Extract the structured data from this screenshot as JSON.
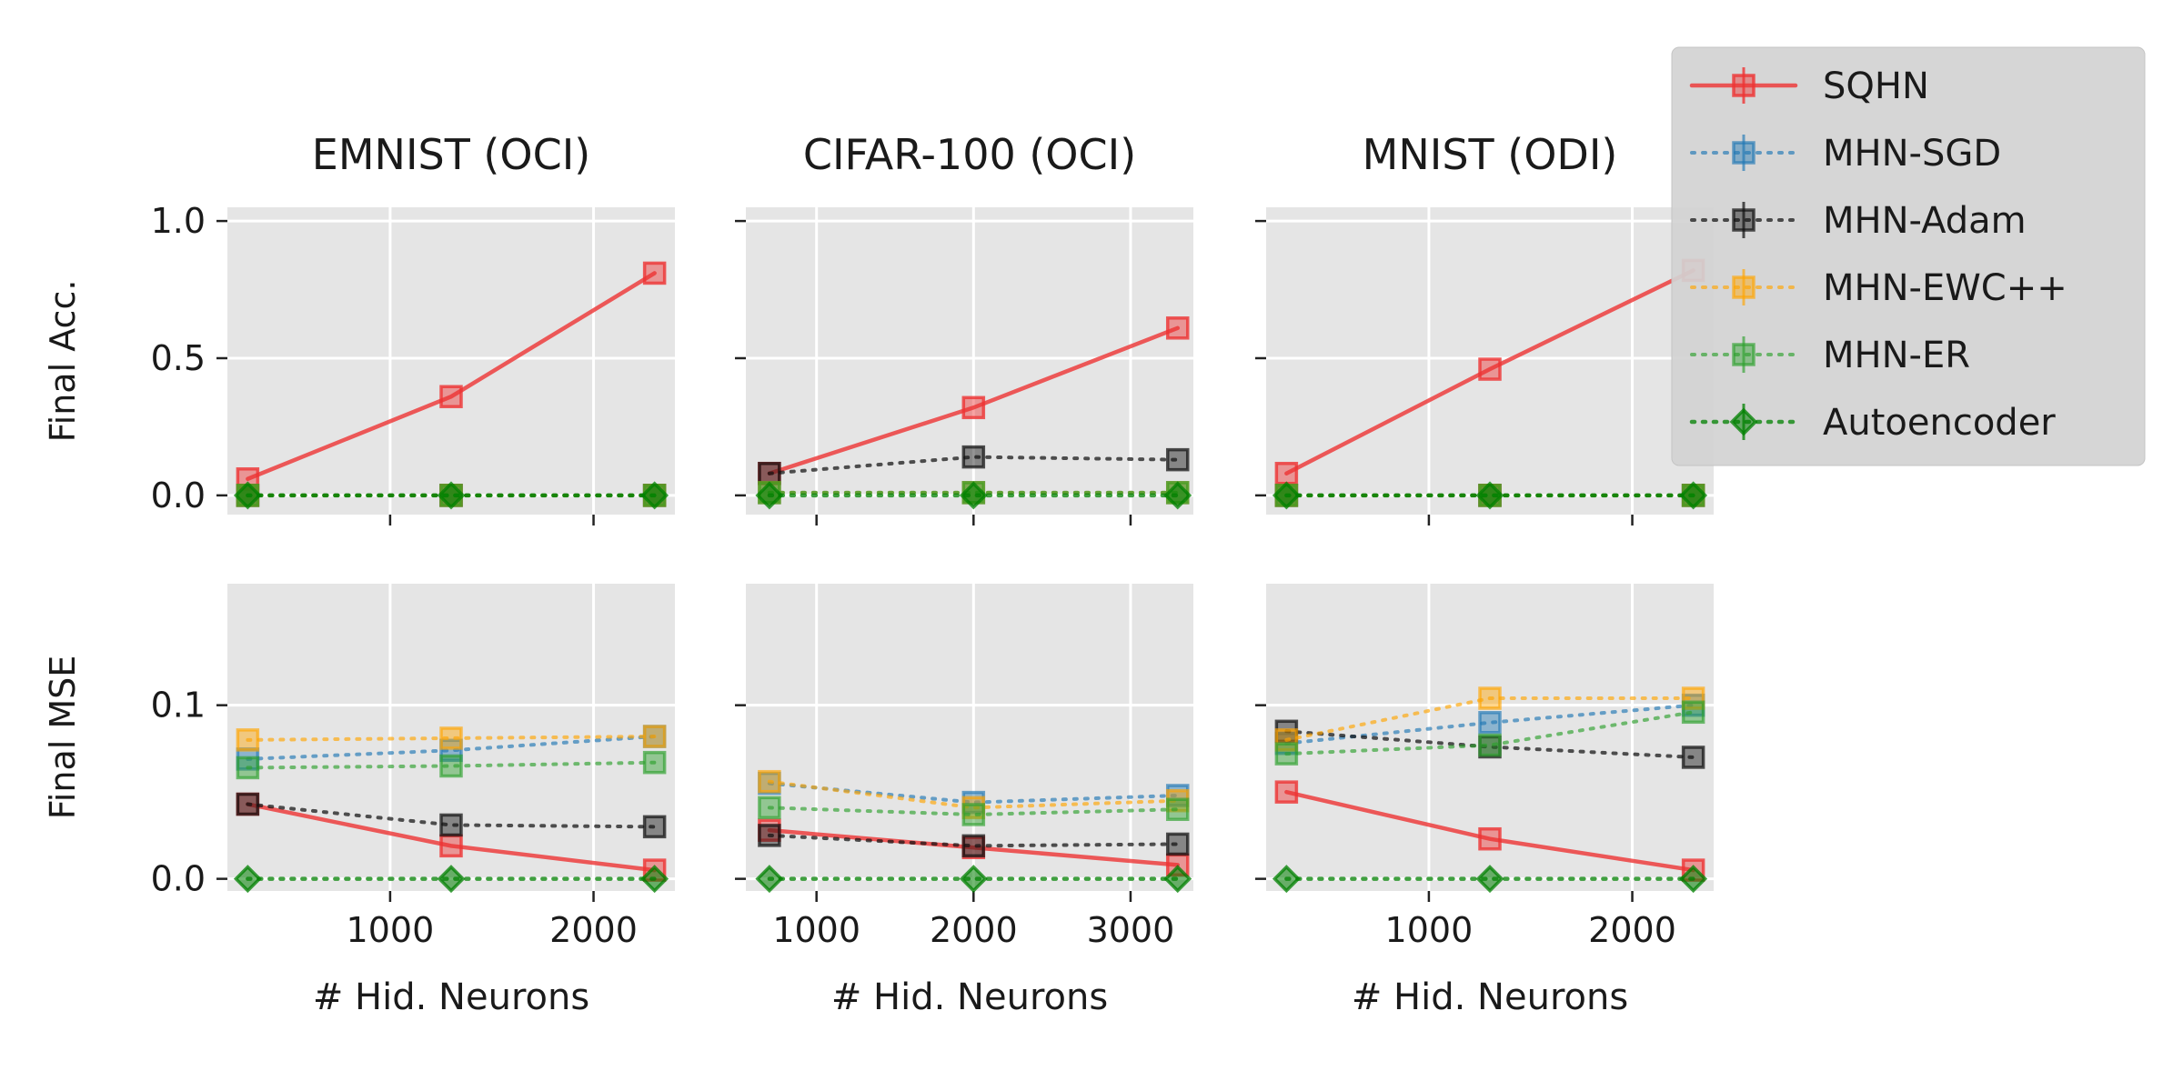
{
  "chart_data": [
    {
      "type": "line",
      "title": "EMNIST (OCI)",
      "ylabel": "Final Acc.",
      "xlabel": "",
      "x": [
        300,
        1300,
        2300
      ],
      "xlim": [
        200,
        2400
      ],
      "ylim": [
        -0.07,
        1.05
      ],
      "xticks": [
        1000,
        2000
      ],
      "xticklabels": [
        "",
        ""
      ],
      "yticks": [
        0.0,
        0.5,
        1.0
      ],
      "yticklabels": [
        "0.0",
        "0.5",
        "1.0"
      ],
      "series": [
        {
          "name": "SQHN",
          "values": [
            0.06,
            0.36,
            0.81
          ]
        },
        {
          "name": "MHN-SGD",
          "values": [
            0.0,
            0.0,
            0.0
          ]
        },
        {
          "name": "MHN-Adam",
          "values": [
            0.0,
            0.0,
            0.0
          ]
        },
        {
          "name": "MHN-EWC++",
          "values": [
            0.0,
            0.0,
            0.0
          ]
        },
        {
          "name": "MHN-ER",
          "values": [
            0.0,
            0.0,
            0.0
          ]
        },
        {
          "name": "Autoencoder",
          "values": [
            0.0,
            0.0,
            0.0
          ]
        }
      ]
    },
    {
      "type": "line",
      "title": "CIFAR-100 (OCI)",
      "ylabel": "",
      "xlabel": "",
      "x": [
        700,
        2000,
        3300
      ],
      "xlim": [
        550,
        3400
      ],
      "ylim": [
        -0.07,
        1.05
      ],
      "xticks": [
        1000,
        2000,
        3000
      ],
      "xticklabels": [
        "",
        "",
        ""
      ],
      "yticks": [
        0.0,
        0.5,
        1.0
      ],
      "yticklabels": [
        "",
        "",
        ""
      ],
      "series": [
        {
          "name": "SQHN",
          "values": [
            0.08,
            0.32,
            0.61
          ]
        },
        {
          "name": "MHN-SGD",
          "values": [
            0.01,
            0.01,
            0.01
          ]
        },
        {
          "name": "MHN-Adam",
          "values": [
            0.08,
            0.14,
            0.13
          ]
        },
        {
          "name": "MHN-EWC++",
          "values": [
            0.01,
            0.01,
            0.01
          ]
        },
        {
          "name": "MHN-ER",
          "values": [
            0.01,
            0.01,
            0.01
          ]
        },
        {
          "name": "Autoencoder",
          "values": [
            0.0,
            0.0,
            0.0
          ]
        }
      ]
    },
    {
      "type": "line",
      "title": "MNIST (ODI)",
      "ylabel": "",
      "xlabel": "",
      "x": [
        300,
        1300,
        2300
      ],
      "xlim": [
        200,
        2400
      ],
      "ylim": [
        -0.07,
        1.05
      ],
      "xticks": [
        1000,
        2000
      ],
      "xticklabels": [
        "",
        ""
      ],
      "yticks": [
        0.0,
        0.5,
        1.0
      ],
      "yticklabels": [
        "",
        "",
        ""
      ],
      "series": [
        {
          "name": "SQHN",
          "values": [
            0.08,
            0.46,
            0.82
          ]
        },
        {
          "name": "MHN-SGD",
          "values": [
            0.0,
            0.0,
            0.0
          ]
        },
        {
          "name": "MHN-Adam",
          "values": [
            0.0,
            0.0,
            0.0
          ]
        },
        {
          "name": "MHN-EWC++",
          "values": [
            0.0,
            0.0,
            0.0
          ]
        },
        {
          "name": "MHN-ER",
          "values": [
            0.0,
            0.0,
            0.0
          ]
        },
        {
          "name": "Autoencoder",
          "values": [
            0.0,
            0.0,
            0.0
          ]
        }
      ]
    },
    {
      "type": "line",
      "title": "",
      "ylabel": "Final MSE",
      "xlabel": "# Hid. Neurons",
      "x": [
        300,
        1300,
        2300
      ],
      "xlim": [
        200,
        2400
      ],
      "ylim": [
        -0.007,
        0.17
      ],
      "xticks": [
        1000,
        2000
      ],
      "xticklabels": [
        "1000",
        "2000"
      ],
      "yticks": [
        0.0,
        0.1
      ],
      "yticklabels": [
        "0.0",
        "0.1"
      ],
      "series": [
        {
          "name": "SQHN",
          "values": [
            0.043,
            0.019,
            0.005
          ]
        },
        {
          "name": "MHN-SGD",
          "values": [
            0.069,
            0.074,
            0.082
          ]
        },
        {
          "name": "MHN-Adam",
          "values": [
            0.043,
            0.031,
            0.03
          ]
        },
        {
          "name": "MHN-EWC++",
          "values": [
            0.08,
            0.081,
            0.082
          ]
        },
        {
          "name": "MHN-ER",
          "values": [
            0.064,
            0.065,
            0.067
          ]
        },
        {
          "name": "Autoencoder",
          "values": [
            0.0,
            0.0,
            0.0
          ]
        }
      ]
    },
    {
      "type": "line",
      "title": "",
      "ylabel": "",
      "xlabel": "# Hid. Neurons",
      "x": [
        700,
        2000,
        3300
      ],
      "xlim": [
        550,
        3400
      ],
      "ylim": [
        -0.007,
        0.17
      ],
      "xticks": [
        1000,
        2000,
        3000
      ],
      "xticklabels": [
        "1000",
        "2000",
        "3000"
      ],
      "yticks": [
        0.0,
        0.1
      ],
      "yticklabels": [
        "",
        ""
      ],
      "series": [
        {
          "name": "SQHN",
          "values": [
            0.028,
            0.018,
            0.008
          ]
        },
        {
          "name": "MHN-SGD",
          "values": [
            0.055,
            0.044,
            0.048
          ]
        },
        {
          "name": "MHN-Adam",
          "values": [
            0.025,
            0.019,
            0.02
          ]
        },
        {
          "name": "MHN-EWC++",
          "values": [
            0.056,
            0.041,
            0.045
          ]
        },
        {
          "name": "MHN-ER",
          "values": [
            0.041,
            0.037,
            0.04
          ]
        },
        {
          "name": "Autoencoder",
          "values": [
            0.0,
            0.0,
            0.0
          ]
        }
      ]
    },
    {
      "type": "line",
      "title": "",
      "ylabel": "",
      "xlabel": "# Hid. Neurons",
      "x": [
        300,
        1300,
        2300
      ],
      "xlim": [
        200,
        2400
      ],
      "ylim": [
        -0.007,
        0.17
      ],
      "xticks": [
        1000,
        2000
      ],
      "xticklabels": [
        "1000",
        "2000"
      ],
      "yticks": [
        0.0,
        0.1
      ],
      "yticklabels": [
        "",
        ""
      ],
      "series": [
        {
          "name": "SQHN",
          "values": [
            0.05,
            0.023,
            0.005
          ]
        },
        {
          "name": "MHN-SGD",
          "values": [
            0.078,
            0.09,
            0.1
          ]
        },
        {
          "name": "MHN-Adam",
          "values": [
            0.085,
            0.076,
            0.07
          ]
        },
        {
          "name": "MHN-EWC++",
          "values": [
            0.08,
            0.104,
            0.104
          ]
        },
        {
          "name": "MHN-ER",
          "values": [
            0.072,
            0.077,
            0.096
          ]
        },
        {
          "name": "Autoencoder",
          "values": [
            0.0,
            0.0,
            0.0
          ]
        }
      ]
    }
  ],
  "legend": {
    "position": "top-right",
    "entries": [
      {
        "name": "SQHN",
        "color": "#ee3333",
        "linestyle": "solid",
        "marker": "square"
      },
      {
        "name": "MHN-SGD",
        "color": "#1f77b4",
        "linestyle": "dotted",
        "marker": "square"
      },
      {
        "name": "MHN-Adam",
        "color": "#111111",
        "linestyle": "dotted",
        "marker": "square"
      },
      {
        "name": "MHN-EWC++",
        "color": "#ffa500",
        "linestyle": "dotted",
        "marker": "square"
      },
      {
        "name": "MHN-ER",
        "color": "#2ca02c",
        "linestyle": "dotted",
        "marker": "square"
      },
      {
        "name": "Autoencoder",
        "color": "#008000",
        "linestyle": "dotted",
        "marker": "diamond"
      }
    ]
  },
  "grid": true
}
